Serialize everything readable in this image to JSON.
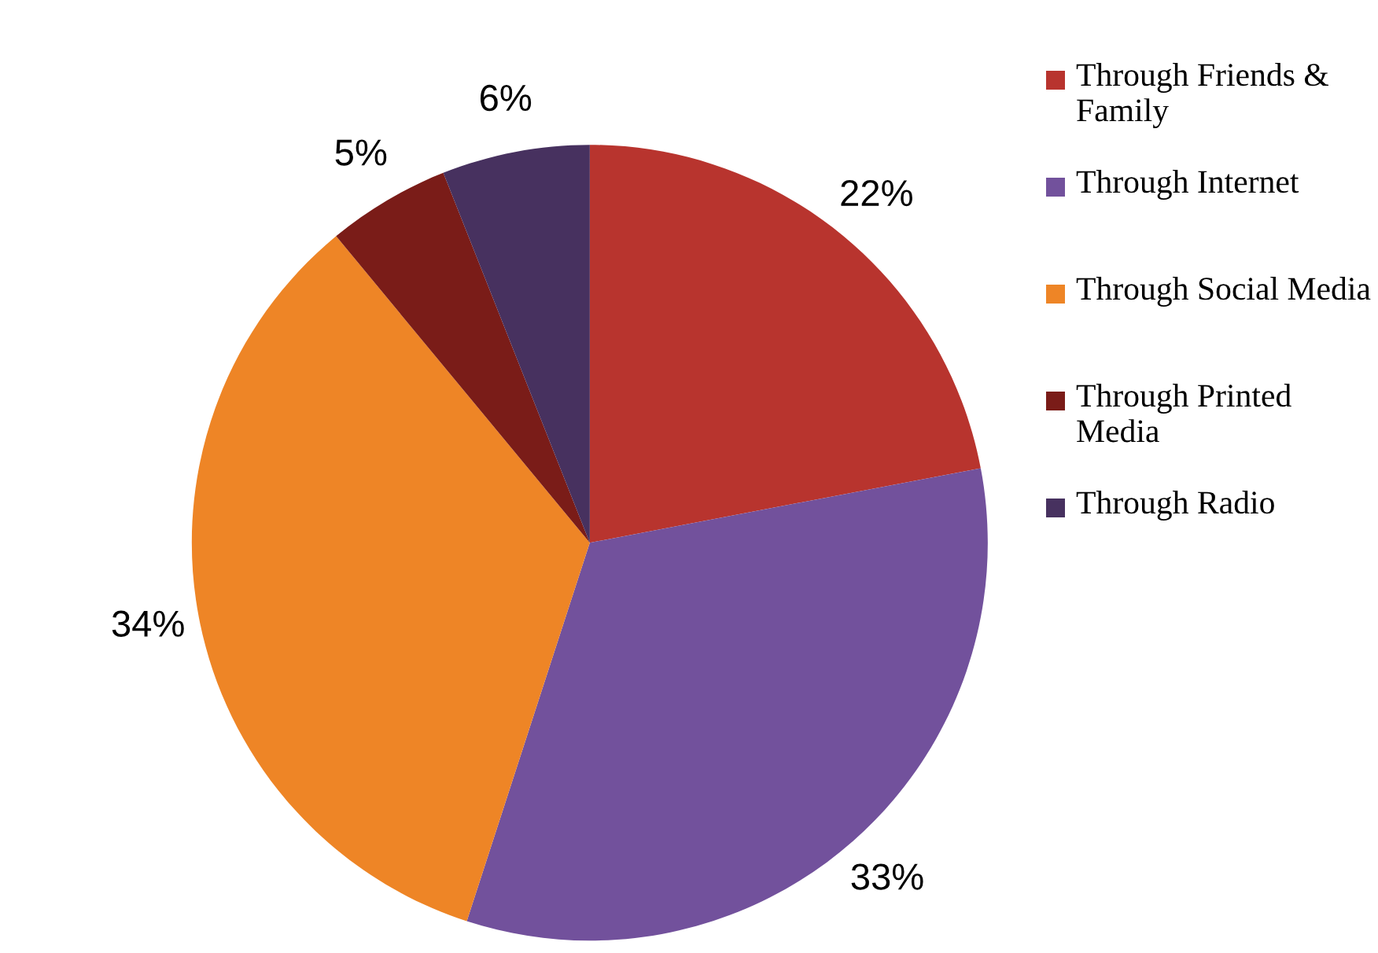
{
  "chart_data": {
    "type": "pie",
    "categories": [
      "Through Friends & Family",
      "Through Internet",
      "Through Social Media",
      "Through Printed Media",
      "Through Radio"
    ],
    "values": [
      22,
      33,
      34,
      5,
      6
    ],
    "value_labels": [
      "22%",
      "33%",
      "34%",
      "5%",
      "6%"
    ],
    "colors": [
      "#b8342e",
      "#72519c",
      "#ee8526",
      "#7a1c18",
      "#47315f"
    ],
    "legend": "right"
  }
}
